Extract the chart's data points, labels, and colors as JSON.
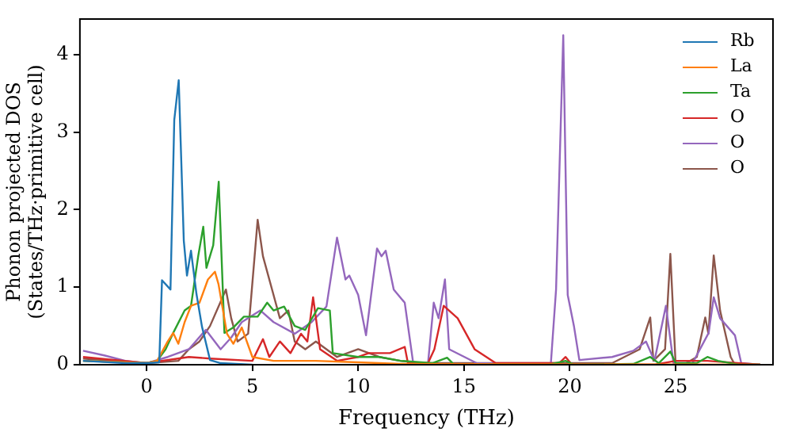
{
  "chart_data": {
    "type": "line",
    "xlabel": "Frequency (THz)",
    "ylabel": "Phonon projected DOS\n(States/THz·primitive cell)",
    "xlim": [
      -3.15,
      29.6
    ],
    "ylim": [
      0,
      4.46
    ],
    "xticks": [
      0,
      5,
      10,
      15,
      20,
      25
    ],
    "yticks": [
      0,
      1,
      2,
      3,
      4
    ],
    "grid": false,
    "legend": "top right",
    "marker": "none",
    "line_style": "solid",
    "series": [
      {
        "name": "Rb",
        "color": "#1f77b4",
        "x": [
          -3,
          -1,
          0,
          0.6,
          0.73,
          1.13,
          1.31,
          1.52,
          1.76,
          1.91,
          2.1,
          2.36,
          2.62,
          3.0,
          3.5,
          5
        ],
        "values": [
          0.05,
          0.02,
          0.02,
          0.03,
          1.09,
          0.97,
          3.16,
          3.67,
          1.6,
          1.15,
          1.47,
          0.91,
          0.49,
          0.06,
          0.02,
          0
        ]
      },
      {
        "name": "La",
        "color": "#ff7f0e",
        "x": [
          -3,
          0,
          0.5,
          1.0,
          1.26,
          1.5,
          1.8,
          2.1,
          2.5,
          2.9,
          3.23,
          3.4,
          3.8,
          4.1,
          4.5,
          5.0,
          6,
          8,
          10,
          12,
          29
        ],
        "values": [
          0.05,
          0.02,
          0.05,
          0.3,
          0.41,
          0.27,
          0.55,
          0.76,
          0.8,
          1.1,
          1.2,
          1.04,
          0.4,
          0.27,
          0.48,
          0.1,
          0.05,
          0.05,
          0.03,
          0.01,
          0
        ]
      },
      {
        "name": "Ta",
        "color": "#2ca02c",
        "x": [
          -3,
          0,
          0.5,
          0.9,
          1.26,
          1.8,
          2.1,
          2.44,
          2.68,
          2.83,
          3.15,
          3.41,
          3.68,
          4.1,
          4.6,
          5.25,
          5.7,
          6.0,
          6.5,
          7.0,
          7.5,
          8.1,
          8.66,
          8.8,
          10,
          11,
          12,
          13.5,
          14.2,
          14.5,
          19,
          19.8,
          20.2,
          23,
          23.8,
          24.2,
          24.75,
          25,
          26,
          26.5,
          27,
          28,
          29
        ],
        "values": [
          0.05,
          0.02,
          0.05,
          0.2,
          0.41,
          0.7,
          0.76,
          1.4,
          1.78,
          1.25,
          1.54,
          2.36,
          0.41,
          0.48,
          0.62,
          0.62,
          0.8,
          0.7,
          0.75,
          0.5,
          0.45,
          0.73,
          0.7,
          0.15,
          0.1,
          0.1,
          0.05,
          0.02,
          0.09,
          0.01,
          0,
          0.05,
          0,
          0.01,
          0.1,
          0.02,
          0.17,
          0.02,
          0.02,
          0.1,
          0.05,
          0,
          0
        ]
      },
      {
        "name": "O",
        "color": "#d62728",
        "x": [
          -3,
          0,
          2,
          3,
          5,
          5.5,
          5.8,
          6.3,
          6.8,
          7.3,
          7.6,
          7.87,
          8.2,
          9,
          10,
          10.5,
          11.5,
          12.2,
          12.35,
          13.3,
          13.6,
          14.04,
          14.7,
          15.5,
          16.5,
          19.5,
          19.8,
          20.1,
          24,
          25,
          26.5,
          29
        ],
        "values": [
          0.1,
          0.02,
          0.1,
          0.08,
          0.05,
          0.33,
          0.1,
          0.3,
          0.15,
          0.4,
          0.3,
          0.87,
          0.2,
          0.05,
          0.1,
          0.15,
          0.15,
          0.23,
          0.02,
          0.02,
          0.2,
          0.76,
          0.6,
          0.2,
          0.02,
          0.02,
          0.1,
          0,
          0,
          0.05,
          0.05,
          0
        ]
      },
      {
        "name": "O",
        "color": "#9467bd",
        "x": [
          -3,
          -2,
          -1,
          0,
          1,
          2,
          2.8,
          3.5,
          4,
          4.5,
          5.38,
          6,
          7,
          7.8,
          8.5,
          9.0,
          9.4,
          9.58,
          10.0,
          10.37,
          10.89,
          11.1,
          11.3,
          11.68,
          12.2,
          12.6,
          13.3,
          13.57,
          13.8,
          14.1,
          14.3,
          14.8,
          15.6,
          19.1,
          19.35,
          19.69,
          19.9,
          20.2,
          20.45,
          22,
          23,
          23.6,
          24.0,
          24.54,
          24.9,
          25.8,
          26.56,
          26.8,
          27.1,
          27.8,
          28.1,
          29
        ],
        "values": [
          0.18,
          0.12,
          0.05,
          0.02,
          0.1,
          0.2,
          0.45,
          0.2,
          0.35,
          0.55,
          0.7,
          0.55,
          0.4,
          0.55,
          0.75,
          1.64,
          1.1,
          1.15,
          0.9,
          0.38,
          1.5,
          1.4,
          1.47,
          0.97,
          0.8,
          0.02,
          0.02,
          0.8,
          0.6,
          1.1,
          0.2,
          0.13,
          0.02,
          0,
          0.97,
          4.25,
          0.9,
          0.49,
          0.06,
          0.1,
          0.18,
          0.3,
          0.05,
          0.76,
          0.02,
          0.02,
          0.41,
          0.87,
          0.6,
          0.38,
          0.02,
          0
        ]
      },
      {
        "name": "O",
        "color": "#8c564b",
        "x": [
          -3,
          0,
          1.5,
          2,
          2.5,
          3.0,
          3.75,
          4.0,
          4.3,
          4.8,
          5.25,
          5.5,
          6.0,
          6.3,
          6.7,
          7.0,
          7.5,
          8.0,
          8.5,
          9,
          10,
          11,
          12,
          13,
          22,
          23.3,
          23.8,
          23.95,
          24.5,
          24.75,
          25.0,
          25.5,
          26.0,
          26.4,
          26.55,
          26.8,
          27.1,
          27.6,
          27.8,
          29
        ],
        "values": [
          0.08,
          0.02,
          0.05,
          0.2,
          0.3,
          0.5,
          0.97,
          0.6,
          0.3,
          0.4,
          1.87,
          1.4,
          0.9,
          0.6,
          0.7,
          0.3,
          0.2,
          0.3,
          0.2,
          0.1,
          0.2,
          0.1,
          0.05,
          0.02,
          0.02,
          0.2,
          0.61,
          0.05,
          0.2,
          1.43,
          0,
          0.02,
          0.1,
          0.61,
          0.4,
          1.41,
          0.7,
          0.1,
          0,
          0
        ]
      }
    ]
  }
}
